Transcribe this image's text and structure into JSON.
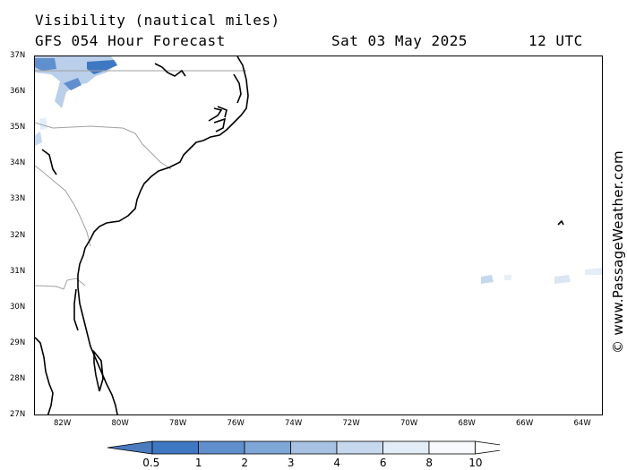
{
  "title": {
    "line1": "Visibility (nautical miles)",
    "model": "GFS 054 Hour Forecast",
    "date": "Sat 03 May 2025",
    "time": "12 UTC"
  },
  "lat_labels": [
    "37N",
    "36N",
    "35N",
    "34N",
    "33N",
    "32N",
    "31N",
    "30N",
    "29N",
    "28N",
    "27N"
  ],
  "lon_labels": [
    "82W",
    "80W",
    "78W",
    "76W",
    "74W",
    "72W",
    "70W",
    "68W",
    "66W",
    "64W"
  ],
  "legend": {
    "labels": [
      "0.5",
      "1",
      "2",
      "3",
      "4",
      "6",
      "8",
      "10"
    ],
    "colors": [
      "#4a7bbf",
      "#3f78c2",
      "#5f8fcc",
      "#7ea6d6",
      "#a6c1e2",
      "#c6d8ee",
      "#e3edf7",
      "#f7f9fc",
      "#ffffff"
    ]
  },
  "watermark": "© www.PassageWeather.com",
  "colors": {
    "land_border": "#a0a0a0",
    "coast": "#000000",
    "fog": "#3f78c2"
  }
}
